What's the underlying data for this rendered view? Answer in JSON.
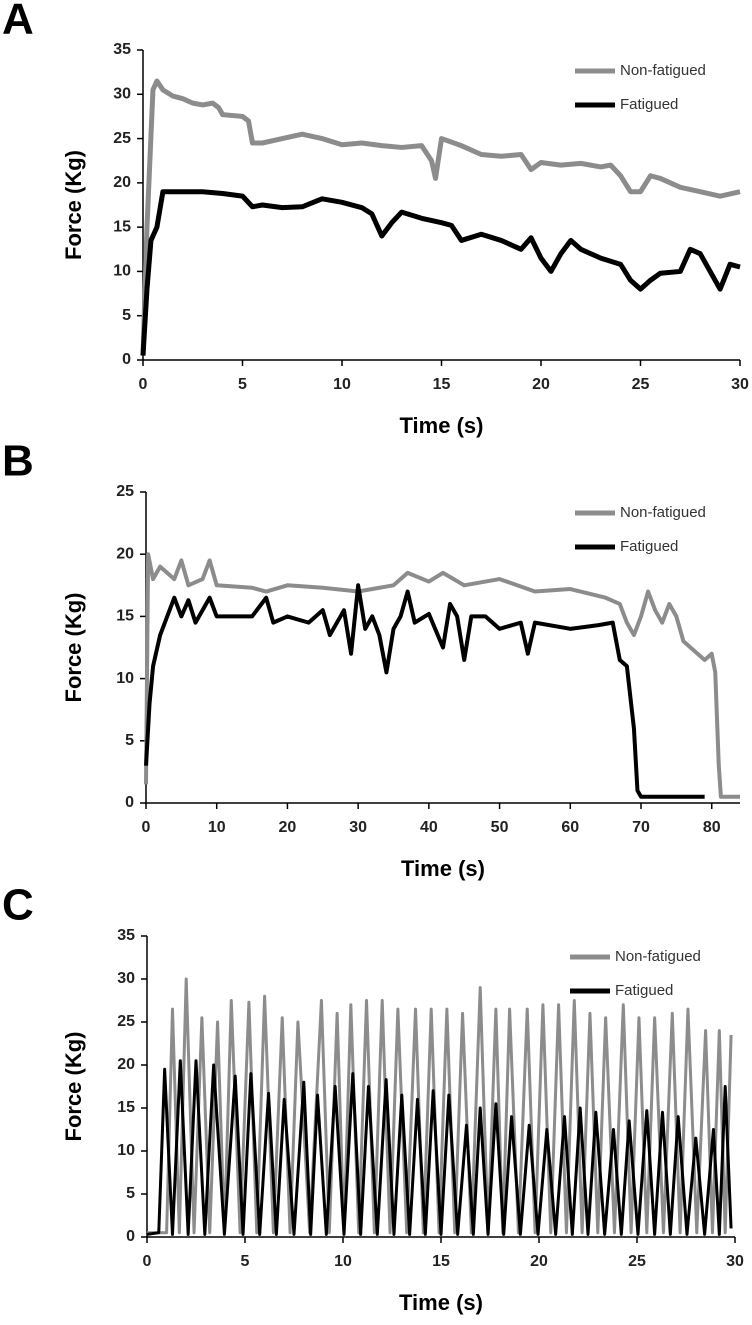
{
  "chart_data": [
    {
      "type": "line",
      "panel_label": "A",
      "xlabel": "Time (s)",
      "ylabel": "Force (Kg)",
      "legend": "upper right",
      "xlim": [
        0,
        30
      ],
      "ylim": [
        0,
        35
      ],
      "xticks": [
        0,
        5,
        10,
        15,
        20,
        25,
        30
      ],
      "yticks": [
        0,
        5,
        10,
        15,
        20,
        25,
        30,
        35
      ],
      "series": [
        {
          "name": "Non-fatigued",
          "color": "#8c8c8c",
          "x": [
            0,
            0.2,
            0.5,
            0.7,
            1,
            1.5,
            2,
            2.5,
            3,
            3.5,
            3.8,
            4,
            5,
            5.3,
            5.5,
            6,
            7,
            8,
            9,
            10,
            11,
            12,
            13,
            14,
            14.5,
            14.7,
            15,
            16,
            17,
            18,
            19,
            19.5,
            20,
            21,
            22,
            23,
            23.5,
            24,
            24.5,
            25,
            25.5,
            26,
            27,
            28,
            29,
            30
          ],
          "values": [
            0.5,
            15,
            30.5,
            31.5,
            30.5,
            29.8,
            29.5,
            29,
            28.8,
            29,
            28.5,
            27.7,
            27.5,
            27,
            24.5,
            24.5,
            25,
            25.5,
            25,
            24.3,
            24.5,
            24.2,
            24,
            24.2,
            22.5,
            20.5,
            25,
            24.2,
            23.2,
            23,
            23.2,
            21.5,
            22.3,
            22,
            22.2,
            21.8,
            22,
            20.8,
            19,
            19,
            20.8,
            20.5,
            19.5,
            19,
            18.5,
            19
          ]
        },
        {
          "name": "Fatigued",
          "color": "#000000",
          "x": [
            0,
            0.2,
            0.4,
            0.7,
            1,
            2,
            3,
            4,
            5,
            5.5,
            6,
            7,
            8,
            9,
            10,
            11,
            11.5,
            12,
            12.5,
            13,
            14,
            15,
            15.5,
            16,
            17,
            18,
            19,
            19.5,
            20,
            20.5,
            21,
            21.5,
            22,
            23,
            24,
            24.5,
            25,
            25.5,
            26,
            27,
            27.5,
            28,
            28.5,
            29,
            29.5,
            30
          ],
          "values": [
            0.5,
            8,
            13.5,
            15,
            19,
            19,
            19,
            18.8,
            18.5,
            17.3,
            17.5,
            17.2,
            17.3,
            18.2,
            17.8,
            17.2,
            16.5,
            14,
            15.5,
            16.7,
            16,
            15.5,
            15.2,
            13.5,
            14.2,
            13.5,
            12.5,
            13.8,
            11.5,
            10,
            12,
            13.5,
            12.5,
            11.5,
            10.8,
            9,
            8,
            9,
            9.8,
            10,
            12.5,
            12,
            10,
            8,
            10.8,
            10.5
          ]
        }
      ]
    },
    {
      "type": "line",
      "panel_label": "B",
      "xlabel": "Time (s)",
      "ylabel": "Force (Kg)",
      "legend": "upper right",
      "xlim": [
        0,
        84
      ],
      "ylim": [
        0,
        25
      ],
      "xticks": [
        0,
        10,
        20,
        30,
        40,
        50,
        60,
        70,
        80
      ],
      "yticks": [
        0,
        5,
        10,
        15,
        20,
        25
      ],
      "series": [
        {
          "name": "Non-fatigued",
          "color": "#8c8c8c",
          "x": [
            0,
            0.3,
            1,
            2,
            3,
            4,
            5,
            6,
            8,
            9,
            10,
            15,
            17,
            20,
            25,
            30,
            35,
            37,
            40,
            42,
            45,
            50,
            55,
            60,
            65,
            67,
            68,
            69,
            70,
            71,
            72,
            73,
            74,
            75,
            76,
            78,
            79,
            80,
            80.5,
            81,
            81.3,
            84
          ],
          "values": [
            1.5,
            20,
            18,
            19,
            18.5,
            18,
            19.5,
            17.5,
            18,
            19.5,
            17.5,
            17.3,
            17,
            17.5,
            17.3,
            17,
            17.5,
            18.5,
            17.8,
            18.5,
            17.5,
            18,
            17,
            17.2,
            16.5,
            16,
            14.5,
            13.5,
            15,
            17,
            15.5,
            14.5,
            16,
            15,
            13,
            12,
            11.5,
            12,
            10.5,
            3,
            0.5,
            0.5
          ]
        },
        {
          "name": "Fatigued",
          "color": "#000000",
          "x": [
            0,
            0.5,
            1,
            2,
            3,
            4,
            5,
            6,
            7,
            9,
            10,
            15,
            17,
            18,
            20,
            23,
            25,
            26,
            28,
            29,
            30,
            31,
            32,
            33,
            34,
            35,
            36,
            37,
            38,
            40,
            42,
            43,
            44,
            45,
            46,
            48,
            50,
            53,
            54,
            55,
            60,
            64,
            66,
            67,
            68,
            69,
            69.5,
            70,
            79
          ],
          "values": [
            3,
            8,
            11,
            13.5,
            15,
            16.5,
            15,
            16.3,
            14.5,
            16.5,
            15,
            15,
            16.5,
            14.5,
            15,
            14.5,
            15.5,
            13.5,
            15.5,
            12,
            17.5,
            14,
            15,
            13.5,
            10.5,
            14,
            15,
            17,
            14.5,
            15.2,
            12.5,
            16,
            15,
            11.5,
            15,
            15,
            14,
            14.5,
            12,
            14.5,
            14,
            14.3,
            14.5,
            11.5,
            11,
            6,
            1,
            0.5,
            0.5
          ]
        }
      ]
    },
    {
      "type": "line",
      "panel_label": "C",
      "xlabel": "Time (s)",
      "ylabel": "Force (Kg)",
      "legend": "upper right",
      "xlim": [
        0,
        30
      ],
      "ylim": [
        0,
        35
      ],
      "xticks": [
        0,
        5,
        10,
        15,
        20,
        25,
        30
      ],
      "yticks": [
        0,
        5,
        10,
        15,
        20,
        25,
        30,
        35
      ],
      "series": [
        {
          "name": "Non-fatigued",
          "color": "#8c8c8c",
          "x": [
            0,
            1.0,
            1.3,
            1.65,
            2.0,
            2.4,
            2.8,
            3.2,
            3.6,
            3.95,
            4.3,
            4.75,
            5.2,
            5.6,
            6.0,
            6.45,
            6.9,
            7.3,
            7.7,
            8.3,
            8.9,
            9.3,
            9.7,
            10.05,
            10.4,
            10.8,
            11.2,
            11.6,
            12.0,
            12.4,
            12.8,
            13.25,
            13.7,
            14.1,
            14.5,
            14.9,
            15.3,
            15.7,
            16.1,
            16.55,
            17.0,
            17.4,
            17.8,
            18.15,
            18.5,
            18.95,
            19.4,
            19.8,
            20.2,
            20.6,
            21.0,
            21.4,
            21.8,
            22.2,
            22.6,
            23.0,
            23.4,
            23.85,
            24.3,
            24.7,
            25.1,
            25.5,
            25.9,
            26.35,
            26.8,
            27.2,
            27.6,
            28.05,
            28.5,
            28.85,
            29.2,
            29.5,
            29.8
          ],
          "values": [
            0.5,
            0.5,
            26.5,
            0.5,
            30,
            0.5,
            25.5,
            0.5,
            25,
            0.5,
            27.5,
            0.5,
            27.3,
            0.5,
            28,
            0.5,
            25.5,
            0.5,
            25,
            0.5,
            27.5,
            0.5,
            26,
            0.5,
            27,
            0.5,
            27.5,
            0.5,
            27.5,
            0.5,
            26.5,
            0.5,
            26.5,
            0.5,
            26.5,
            0.5,
            26.5,
            0.5,
            26,
            0.5,
            29,
            0.5,
            26.5,
            0.5,
            26.5,
            0.5,
            26.5,
            0.5,
            27,
            0.5,
            27,
            0.5,
            27.5,
            0.5,
            26,
            0.5,
            25.5,
            0.5,
            27,
            0.5,
            25.5,
            0.5,
            25.5,
            0.5,
            26,
            0.5,
            26.5,
            0.5,
            24,
            0.5,
            24,
            0.5,
            23.5
          ]
        },
        {
          "name": "Fatigued",
          "color": "#000000",
          "x": [
            0,
            0.6,
            0.9,
            1.3,
            1.7,
            2.1,
            2.5,
            2.95,
            3.4,
            3.95,
            4.5,
            4.9,
            5.3,
            5.75,
            6.2,
            6.6,
            7.0,
            7.5,
            8.0,
            8.35,
            8.7,
            9.15,
            9.6,
            10.05,
            10.5,
            10.9,
            11.3,
            11.75,
            12.2,
            12.6,
            13.0,
            13.4,
            13.8,
            14.2,
            14.6,
            15.0,
            15.4,
            15.85,
            16.3,
            16.65,
            17.0,
            17.4,
            17.8,
            18.2,
            18.6,
            19.05,
            19.5,
            19.95,
            20.4,
            20.85,
            21.3,
            21.7,
            22.1,
            22.5,
            22.9,
            23.35,
            23.8,
            24.2,
            24.6,
            25.05,
            25.5,
            25.9,
            26.3,
            26.7,
            27.1,
            27.55,
            28.0,
            28.45,
            28.9,
            29.2,
            29.5,
            29.8
          ],
          "values": [
            0.3,
            0.5,
            19.5,
            0.3,
            20.5,
            0.3,
            20.5,
            0.3,
            20,
            0.3,
            18.7,
            0.3,
            19,
            0.3,
            16.7,
            0.3,
            16,
            0.3,
            18,
            0.3,
            16.5,
            0.3,
            17.5,
            0.3,
            19,
            0.3,
            17.5,
            0.3,
            18.3,
            0.3,
            16.5,
            0.3,
            16,
            0.3,
            17,
            0.3,
            16.5,
            0.3,
            13,
            0.3,
            15,
            0.3,
            15.5,
            0.3,
            14,
            0.3,
            13,
            0.3,
            12.5,
            0.3,
            14,
            0.3,
            15,
            0.3,
            14.5,
            0.3,
            12.5,
            0.3,
            13.5,
            0.3,
            14.7,
            0.3,
            14.5,
            0.3,
            14,
            0.3,
            11.5,
            0.3,
            12.5,
            0.3,
            17.5,
            1
          ]
        }
      ]
    }
  ]
}
